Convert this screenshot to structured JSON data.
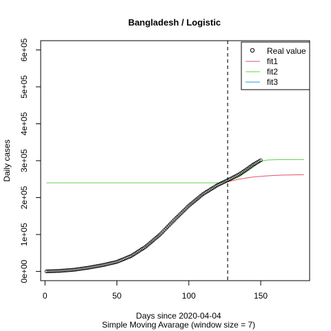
{
  "chart_data": {
    "type": "line",
    "title": "Bangladesh / Logistic",
    "xlabel": "Days since 2020-04-04",
    "xlabel2": "Simple Moving Avarage (window size = 7)",
    "ylabel": "Daily cases",
    "xlim": [
      -3,
      184
    ],
    "ylim": [
      -25000,
      625000
    ],
    "x_ticks": [
      0,
      50,
      100,
      150
    ],
    "x_tick_labels": [
      "0",
      "50",
      "100",
      "150"
    ],
    "y_ticks": [
      0,
      100000,
      200000,
      300000,
      400000,
      500000,
      600000
    ],
    "y_tick_labels": [
      "0e+00",
      "1e+05",
      "2e+05",
      "3e+05",
      "4e+05",
      "5e+05",
      "6e+05"
    ],
    "vline": {
      "x": 127,
      "style": "dashed"
    },
    "legend_position": "top-right",
    "grid": false,
    "legend": [
      {
        "label": "Real value",
        "kind": "point",
        "color": "#000000"
      },
      {
        "label": "fit1",
        "kind": "line",
        "color": "#DF536B"
      },
      {
        "label": "fit2",
        "kind": "line",
        "color": "#61D04F"
      },
      {
        "label": "fit3",
        "kind": "line",
        "color": "#2297E6"
      }
    ],
    "real_value": {
      "x_start": 1,
      "x_end": 150,
      "points": [
        [
          1,
          200
        ],
        [
          10,
          1500
        ],
        [
          20,
          4500
        ],
        [
          30,
          10000
        ],
        [
          40,
          17000
        ],
        [
          50,
          26000
        ],
        [
          60,
          42000
        ],
        [
          70,
          67000
        ],
        [
          80,
          100000
        ],
        [
          90,
          140000
        ],
        [
          100,
          178000
        ],
        [
          110,
          210000
        ],
        [
          120,
          234000
        ],
        [
          127,
          247000
        ],
        [
          135,
          263000
        ],
        [
          140,
          276000
        ],
        [
          145,
          290000
        ],
        [
          150,
          301000
        ]
      ]
    },
    "fit1": {
      "x_start": 127,
      "x_end": 180,
      "points": [
        [
          127,
          243000
        ],
        [
          135,
          250000
        ],
        [
          145,
          256000
        ],
        [
          155,
          259000
        ],
        [
          165,
          261000
        ],
        [
          180,
          262000
        ]
      ]
    },
    "fit2": {
      "x_start": 1,
      "x_end": 180,
      "points": [
        [
          1,
          240000
        ],
        [
          120,
          240000
        ],
        [
          127,
          244000
        ],
        [
          135,
          256000
        ],
        [
          145,
          283000
        ],
        [
          150,
          298000
        ],
        [
          155,
          302000
        ],
        [
          165,
          303000
        ],
        [
          180,
          303000
        ]
      ]
    },
    "fit3": {
      "x_start": 1,
      "x_end": 180,
      "points": []
    }
  }
}
